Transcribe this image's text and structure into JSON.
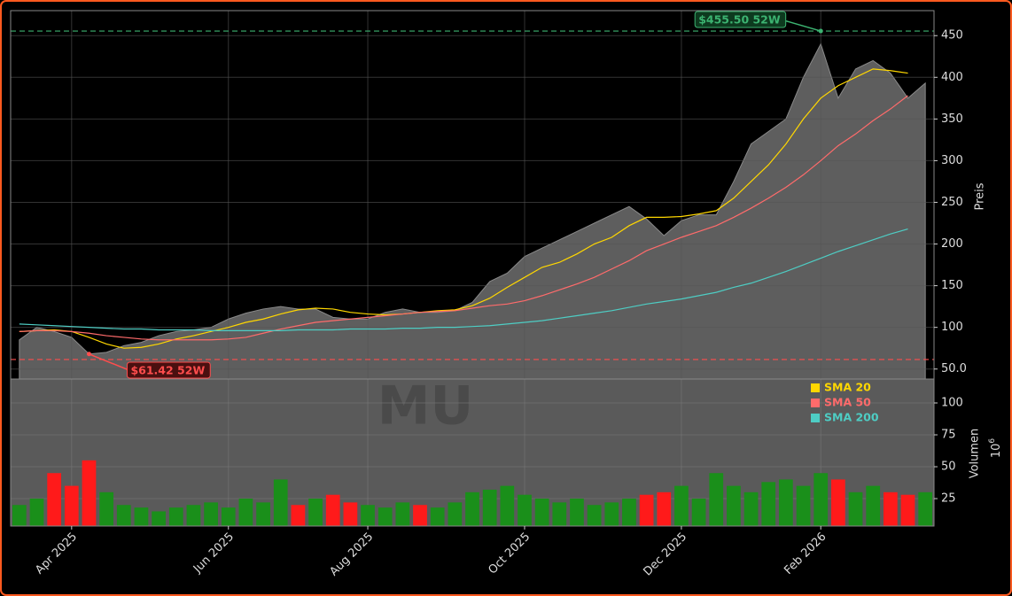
{
  "chart_data": {
    "type": "area",
    "categories": [
      null,
      null,
      null,
      "Apr 2025",
      null,
      null,
      null,
      null,
      null,
      null,
      null,
      null,
      "Jun 2025",
      null,
      null,
      null,
      null,
      null,
      null,
      null,
      "Aug 2025",
      null,
      null,
      null,
      null,
      null,
      null,
      null,
      null,
      "Oct 2025",
      null,
      null,
      null,
      null,
      null,
      null,
      null,
      null,
      "Dec 2025",
      null,
      null,
      null,
      null,
      null,
      null,
      null,
      "Feb 2026",
      null,
      null,
      null,
      null,
      null,
      null
    ],
    "close": {
      "color": "#5e5e5e",
      "values": [
        85,
        100,
        95,
        88,
        68,
        70,
        78,
        82,
        90,
        95,
        97,
        100,
        110,
        117,
        122,
        125,
        122,
        122,
        112,
        110,
        110,
        118,
        122,
        118,
        118,
        120,
        130,
        155,
        165,
        185,
        195,
        205,
        215,
        225,
        235,
        245,
        230,
        210,
        228,
        235,
        235,
        275,
        320,
        335,
        350,
        400,
        440,
        375,
        410,
        420,
        405,
        375,
        393
      ]
    },
    "series": [
      {
        "name": "SMA 20",
        "color": "#ffd700",
        "values": [
          95,
          96,
          97,
          95,
          88,
          80,
          75,
          76,
          80,
          86,
          90,
          95,
          100,
          106,
          110,
          116,
          121,
          123,
          122,
          118,
          116,
          115,
          116,
          118,
          120,
          121,
          126,
          135,
          148,
          160,
          172,
          178,
          188,
          200,
          208,
          222,
          232,
          232,
          233,
          236,
          240,
          255,
          275,
          295,
          320,
          350,
          375,
          390,
          400,
          410,
          408,
          405,
          null
        ]
      },
      {
        "name": "SMA 50",
        "color": "#ff6b6b",
        "values": [
          95,
          96,
          96,
          95,
          93,
          90,
          88,
          86,
          85,
          85,
          85,
          85,
          86,
          88,
          93,
          98,
          102,
          106,
          108,
          110,
          112,
          114,
          116,
          118,
          119,
          120,
          123,
          126,
          128,
          132,
          138,
          145,
          152,
          160,
          170,
          180,
          192,
          200,
          208,
          215,
          222,
          232,
          243,
          255,
          268,
          283,
          300,
          318,
          332,
          348,
          362,
          378,
          null
        ]
      },
      {
        "name": "SMA 200",
        "color": "#4ecdc4",
        "values": [
          104,
          103,
          102,
          101,
          100,
          99,
          98,
          98,
          97,
          97,
          97,
          96,
          96,
          96,
          96,
          96,
          97,
          97,
          97,
          98,
          98,
          98,
          99,
          99,
          100,
          100,
          101,
          102,
          104,
          106,
          108,
          111,
          114,
          117,
          120,
          124,
          128,
          131,
          134,
          138,
          142,
          148,
          153,
          160,
          167,
          175,
          183,
          191,
          198,
          205,
          212,
          218,
          null
        ]
      }
    ],
    "ylim": [
      38,
      480
    ],
    "yticks": [
      {
        "value": 50,
        "label": "50.0"
      },
      100,
      150,
      200,
      250,
      300,
      350,
      400,
      450
    ],
    "ylabel": "Preis",
    "grid": true,
    "annotations": [
      {
        "text": "$455.50 52W",
        "value": 455.5,
        "color": "#3cb371"
      },
      {
        "text": "$61.42 52W",
        "value": 61.42,
        "color": "#ff4d4d"
      }
    ],
    "watermark": "MU",
    "volume": {
      "values": [
        20,
        25,
        45,
        35,
        55,
        30,
        20,
        18,
        15,
        18,
        20,
        22,
        18,
        25,
        22,
        40,
        20,
        25,
        28,
        22,
        20,
        18,
        22,
        20,
        18,
        22,
        30,
        32,
        35,
        28,
        25,
        22,
        25,
        20,
        22,
        25,
        28,
        30,
        35,
        25,
        45,
        35,
        30,
        38,
        40,
        35,
        45,
        40,
        30,
        35,
        30,
        28,
        30
      ],
      "up_color": "#1a8f1a",
      "down_color": "#ff1a1a"
    },
    "y2lim": [
      3.5,
      118.75
    ],
    "y2ticks": [
      25,
      50,
      75,
      100
    ],
    "y2label": "Volumen",
    "y2scale": {
      "base": "10",
      "exponent": "6"
    }
  }
}
